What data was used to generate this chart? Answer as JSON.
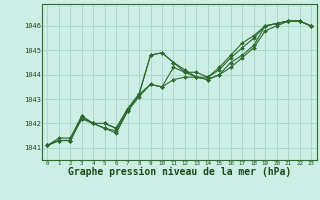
{
  "background_color": "#cceee4",
  "grid_color": "#aad8cc",
  "line_color": "#2d6a2d",
  "marker_color": "#2d6a2d",
  "xlabel": "Graphe pression niveau de la mer (hPa)",
  "xlabel_fontsize": 7.0,
  "xlim": [
    -0.5,
    23.5
  ],
  "ylim": [
    1040.5,
    1046.9
  ],
  "yticks": [
    1041,
    1042,
    1043,
    1044,
    1045,
    1046
  ],
  "xticks": [
    0,
    1,
    2,
    3,
    4,
    5,
    6,
    7,
    8,
    9,
    10,
    11,
    12,
    13,
    14,
    15,
    16,
    17,
    18,
    19,
    20,
    21,
    22,
    23
  ],
  "series1": [
    1041.1,
    1041.3,
    1041.3,
    1042.2,
    1042.0,
    1041.8,
    1041.6,
    1042.5,
    1043.2,
    1044.8,
    1044.9,
    1044.5,
    1044.1,
    1043.9,
    1043.8,
    1044.0,
    1044.3,
    1044.7,
    1045.1,
    1045.8,
    1046.0,
    1046.2,
    1046.2,
    1046.0
  ],
  "series2": [
    1041.1,
    1041.3,
    1041.3,
    1042.2,
    1042.0,
    1041.8,
    1041.7,
    1042.5,
    1043.1,
    1043.6,
    1043.5,
    1044.3,
    1044.1,
    1044.1,
    1043.9,
    1044.2,
    1044.7,
    1045.1,
    1045.5,
    1046.0,
    1046.1,
    1046.2,
    1046.2,
    1046.0
  ],
  "series3": [
    1041.1,
    1041.3,
    1041.3,
    1042.3,
    1042.0,
    1042.0,
    1041.8,
    1042.6,
    1043.2,
    1043.6,
    1043.5,
    1043.8,
    1043.9,
    1043.9,
    1043.9,
    1044.3,
    1044.8,
    1045.3,
    1045.6,
    1046.0,
    1046.1,
    1046.2,
    1046.2,
    1046.0
  ],
  "series4": [
    1041.1,
    1041.4,
    1041.4,
    1042.3,
    1042.0,
    1042.0,
    1041.8,
    1042.6,
    1043.2,
    1044.8,
    1044.9,
    1044.5,
    1044.2,
    1043.9,
    1043.8,
    1044.0,
    1044.5,
    1044.8,
    1045.2,
    1046.0,
    1046.1,
    1046.2,
    1046.2,
    1046.0
  ]
}
